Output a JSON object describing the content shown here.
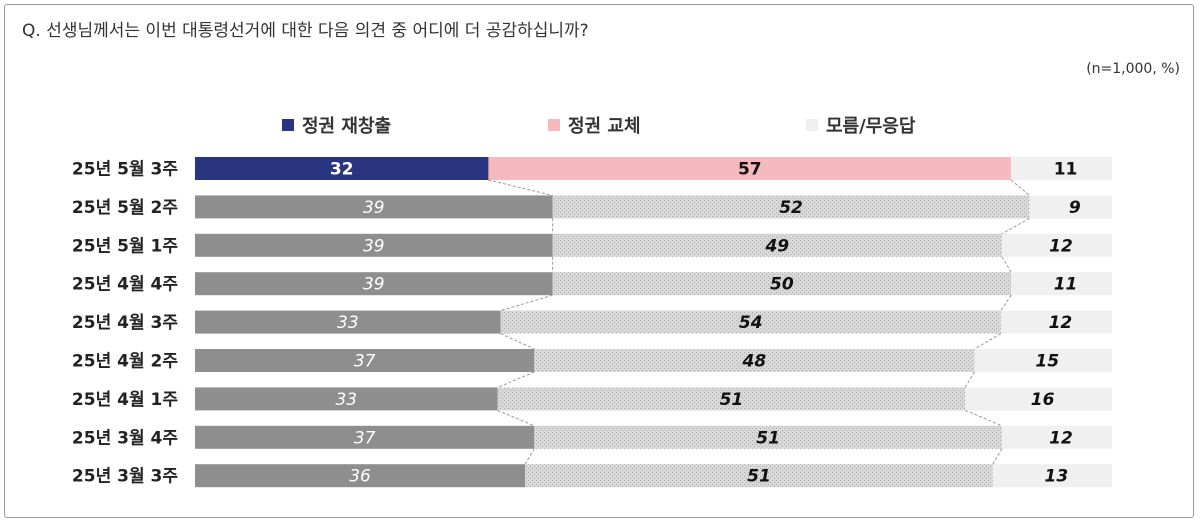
{
  "question": "Q. 선생님께서는 이번 대통령선거에 대한 다음 의견 중 어디에 더 공감하십니까?",
  "unit_note": "(n=1,000, %)",
  "colors": {
    "latest_continue": "#2a3581",
    "latest_replace": "#f6b9bd",
    "previous_continue": "#8e8e8e",
    "previous_replace": "#dcdcdc",
    "unknown": "#f0f0f0",
    "connector": "#999999"
  },
  "chart_data": {
    "type": "bar",
    "orientation": "horizontal",
    "stacked": true,
    "percent": true,
    "categories": [
      "25년 5월 3주",
      "25년 5월 2주",
      "25년 5월 1주",
      "25년 4월 4주",
      "25년 4월 3주",
      "25년 4월 2주",
      "25년 4월 1주",
      "25년 3월 4주",
      "25년 3월 3주"
    ],
    "series": [
      {
        "name": "정권 재창출",
        "values": [
          32,
          39,
          39,
          39,
          33,
          37,
          33,
          37,
          36
        ]
      },
      {
        "name": "정권 교체",
        "values": [
          57,
          52,
          49,
          50,
          54,
          48,
          51,
          51,
          51
        ]
      },
      {
        "name": "모름/무응답",
        "values": [
          11,
          9,
          12,
          11,
          12,
          15,
          16,
          12,
          13
        ]
      }
    ],
    "xlim": [
      0,
      100
    ],
    "legend_position": "top",
    "grid": false,
    "title": "",
    "xlabel": "",
    "ylabel": ""
  }
}
